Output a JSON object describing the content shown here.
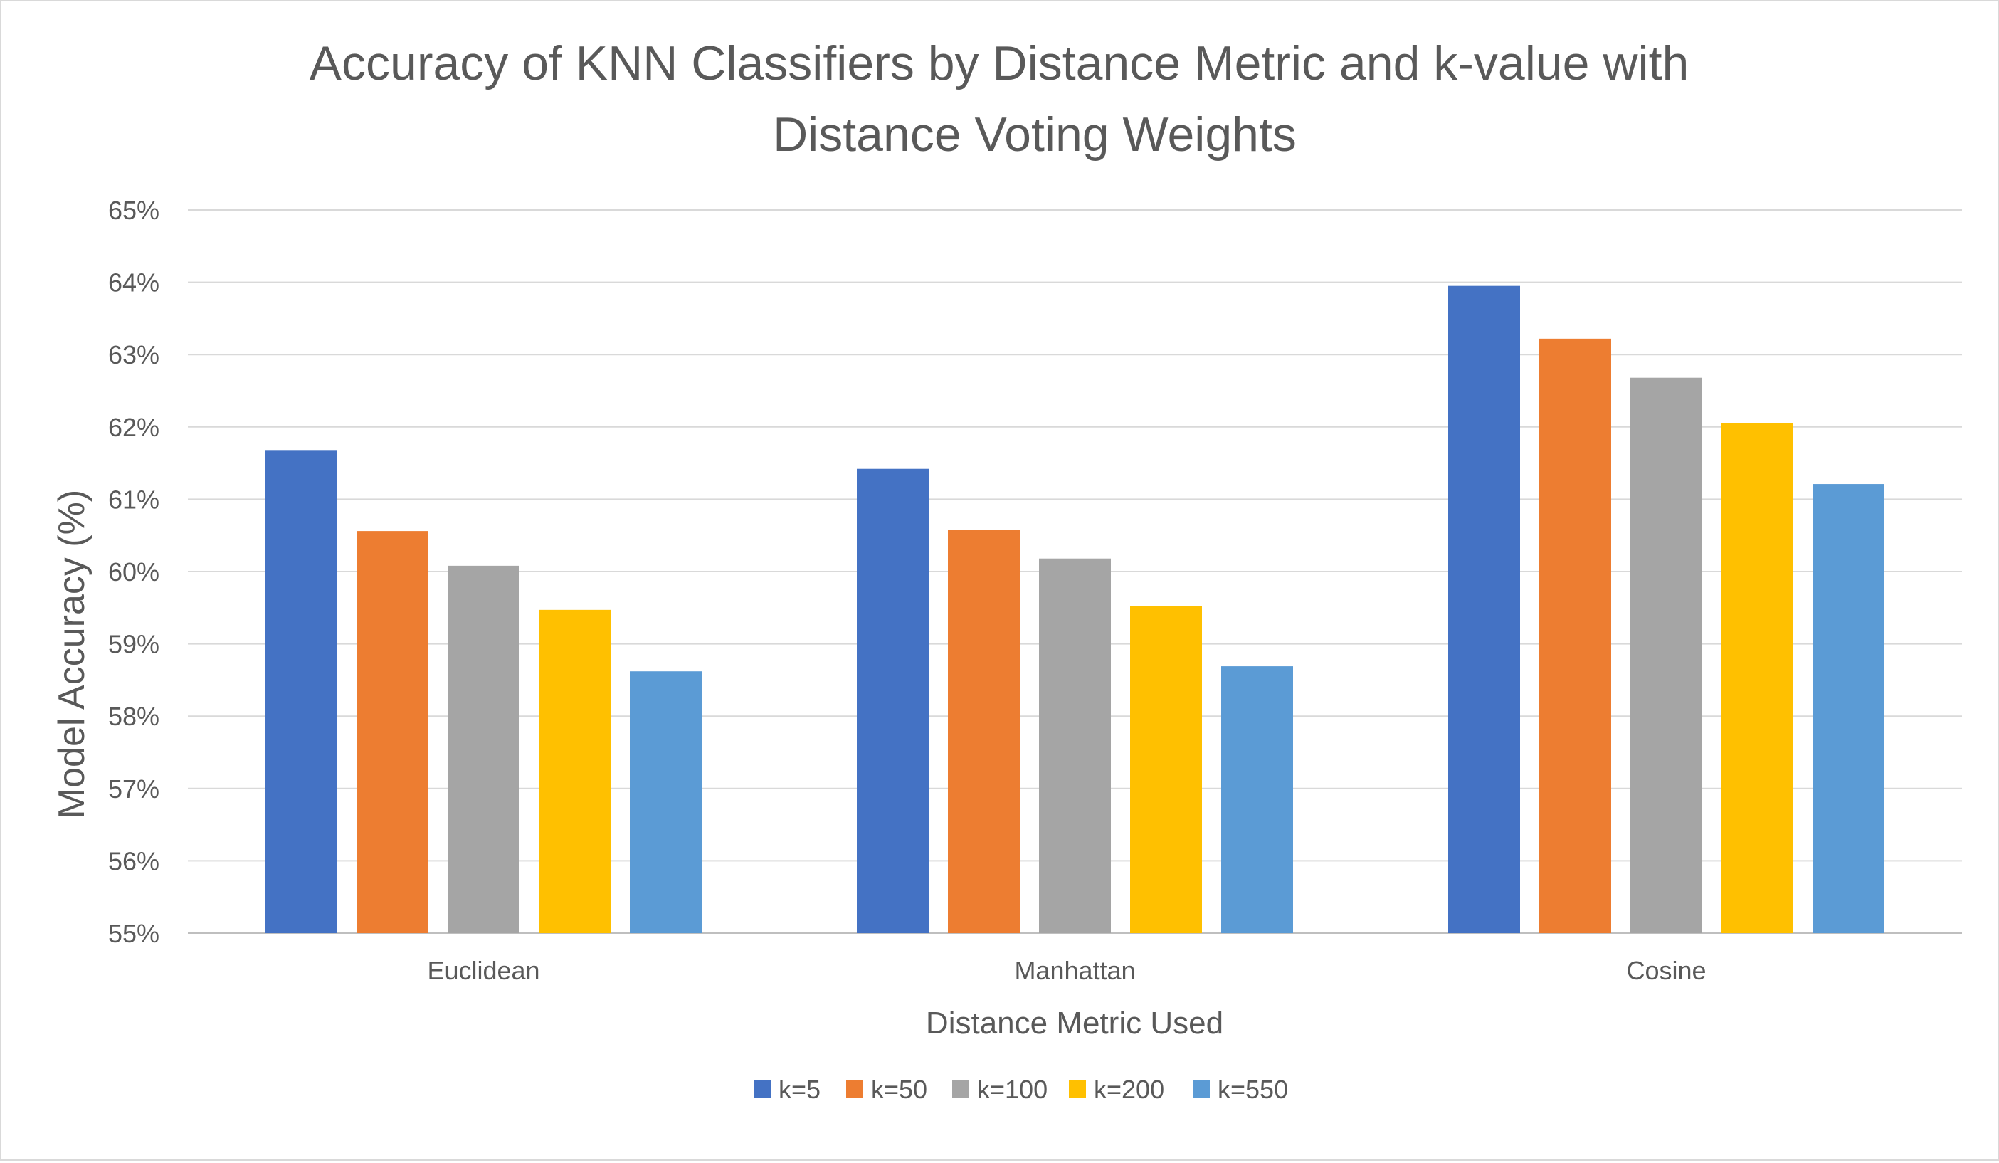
{
  "chart_data": {
    "type": "bar",
    "title": "Accuracy of KNN Classifiers by Distance Metric and k-value with Distance Voting Weights",
    "title_lines": [
      "Accuracy of KNN Classifiers by Distance Metric and k-value with",
      "Distance Voting Weights"
    ],
    "xlabel": "Distance Metric Used",
    "ylabel": "Model Accuracy (%)",
    "categories": [
      "Euclidean",
      "Manhattan",
      "Cosine"
    ],
    "ylim": [
      55,
      65
    ],
    "y_ticks": [
      55,
      56,
      57,
      58,
      59,
      60,
      61,
      62,
      63,
      64,
      65
    ],
    "y_tick_labels": [
      "55%",
      "56%",
      "57%",
      "58%",
      "59%",
      "60%",
      "61%",
      "62%",
      "63%",
      "64%",
      "65%"
    ],
    "grid": true,
    "legend_position": "bottom",
    "series": [
      {
        "name": "k=5",
        "color": "#4472C4",
        "values": [
          61.68,
          61.42,
          63.95
        ]
      },
      {
        "name": "k=50",
        "color": "#ED7D31",
        "values": [
          60.56,
          60.58,
          63.22
        ]
      },
      {
        "name": "k=100",
        "color": "#A5A5A5",
        "values": [
          60.08,
          60.18,
          62.68
        ]
      },
      {
        "name": "k=200",
        "color": "#FFC000",
        "values": [
          59.47,
          59.52,
          62.05
        ]
      },
      {
        "name": "k=550",
        "color": "#5B9BD5",
        "values": [
          58.62,
          58.69,
          61.21
        ]
      }
    ]
  }
}
